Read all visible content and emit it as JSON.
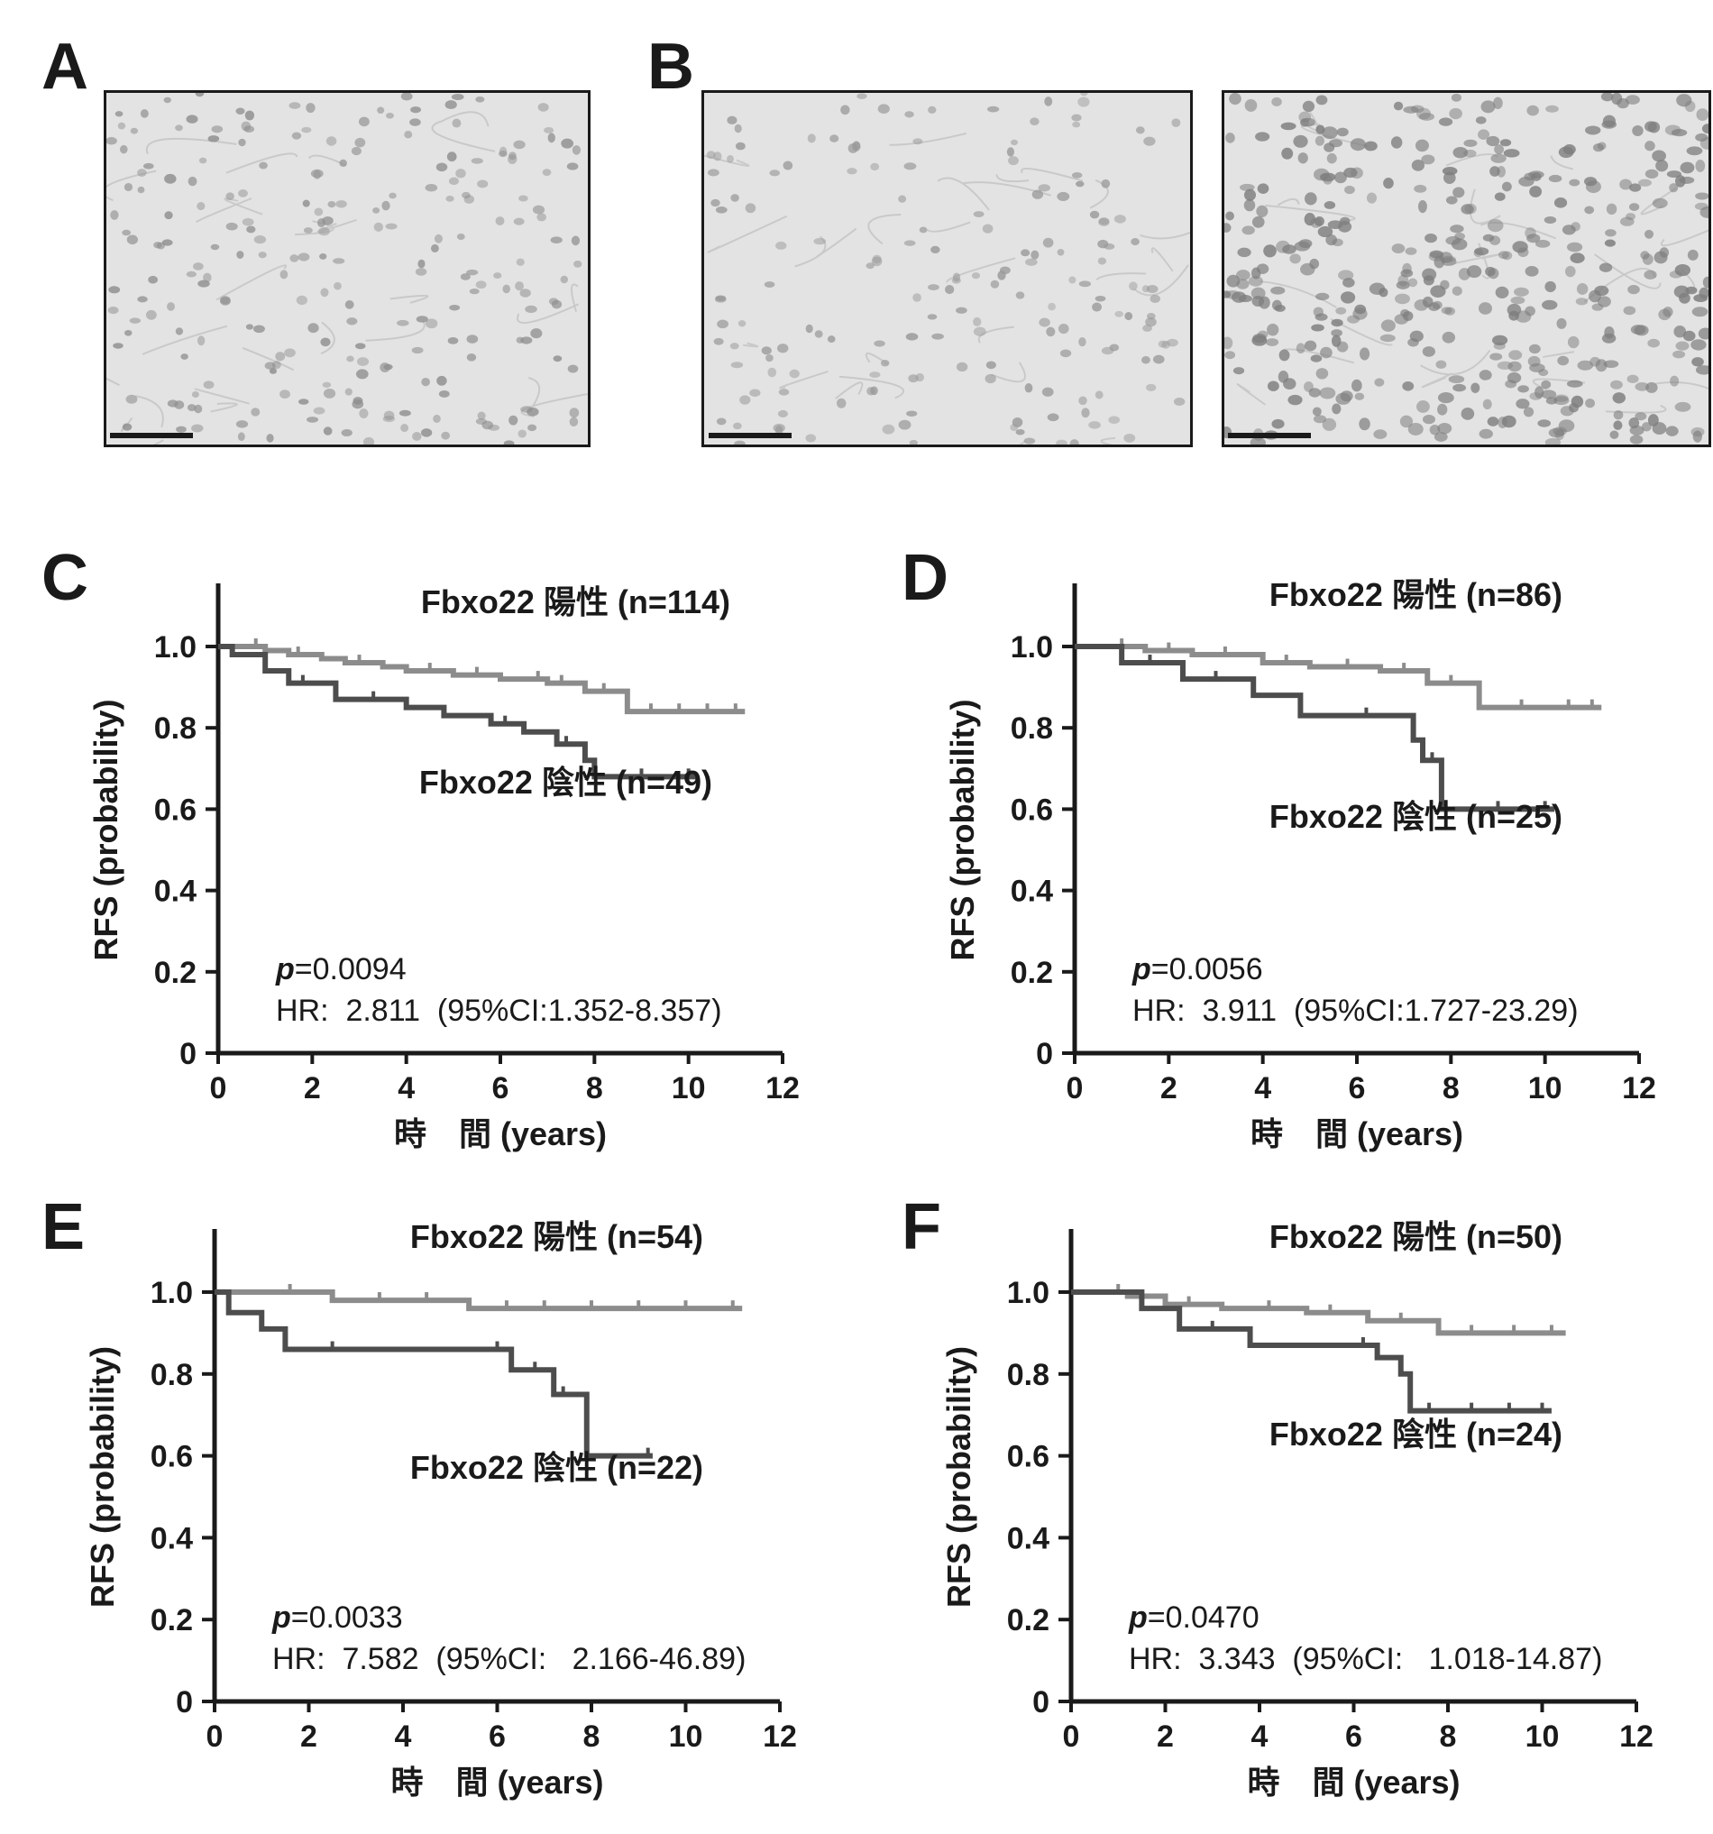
{
  "panel_letters": {
    "A": "A",
    "B": "B",
    "C": "C",
    "D": "D",
    "E": "E",
    "F": "F"
  },
  "micrographs": [
    {
      "panel": "A",
      "content": "normal breast duct tissue, immunostained",
      "scale_bar": true
    },
    {
      "panel": "B",
      "content": "breast tumor tissue, weak nuclear staining",
      "scale_bar": true
    },
    {
      "panel": "B",
      "content": "breast tumor tissue, strong nuclear staining",
      "scale_bar": true
    }
  ],
  "colors": {
    "positive_line": "#8c8c8c",
    "negative_line": "#4d4d4d",
    "axis": "#1a1a1a",
    "tissue_bg": "#e3e3e3",
    "nuclei": "#8a8a8a"
  },
  "chart_data": [
    {
      "panel": "C",
      "type": "line",
      "step": true,
      "ylabel": "RFS (probability)",
      "xlabel": "時　間 (years)",
      "xlim": [
        0,
        12
      ],
      "ylim": [
        0,
        1.0
      ],
      "xticks": [
        "0",
        "2",
        "4",
        "6",
        "8",
        "10",
        "12"
      ],
      "yticks": [
        "0",
        "0.2",
        "0.4",
        "0.6",
        "0.8",
        "1.0"
      ],
      "pvalue_label": "p",
      "pvalue_text": "=0.0094",
      "hr_text": "HR:  2.811  (95%CI:1.352-8.357)",
      "series": [
        {
          "name": "Fbxo22 陽性 (n=114)",
          "role": "positive",
          "x": [
            0,
            0.5,
            1.0,
            1.5,
            2.2,
            2.7,
            3.5,
            4.0,
            5.0,
            6.0,
            6.5,
            7.0,
            7.8,
            8.7,
            11.2
          ],
          "y": [
            1.0,
            1.0,
            0.99,
            0.98,
            0.97,
            0.96,
            0.95,
            0.94,
            0.93,
            0.92,
            0.92,
            0.91,
            0.89,
            0.84,
            0.84
          ],
          "censors": [
            [
              0.8,
              1.0
            ],
            [
              1.7,
              0.98
            ],
            [
              3.0,
              0.96
            ],
            [
              4.5,
              0.94
            ],
            [
              5.5,
              0.93
            ],
            [
              6.8,
              0.92
            ],
            [
              7.3,
              0.91
            ],
            [
              8.2,
              0.89
            ],
            [
              9.2,
              0.84
            ],
            [
              9.8,
              0.84
            ],
            [
              10.4,
              0.84
            ],
            [
              11.0,
              0.84
            ]
          ]
        },
        {
          "name": "Fbxo22 陰性 (n=49)",
          "role": "negative",
          "x": [
            0,
            0.3,
            1.0,
            1.5,
            2.5,
            4.0,
            4.8,
            5.8,
            6.5,
            7.2,
            7.8,
            8.0,
            10.2
          ],
          "y": [
            1.0,
            0.98,
            0.94,
            0.91,
            0.87,
            0.85,
            0.83,
            0.81,
            0.79,
            0.76,
            0.72,
            0.68,
            0.68
          ],
          "censors": [
            [
              1.8,
              0.91
            ],
            [
              3.3,
              0.87
            ],
            [
              6.1,
              0.81
            ],
            [
              7.4,
              0.76
            ],
            [
              9.0,
              0.68
            ],
            [
              10.0,
              0.68
            ]
          ]
        }
      ]
    },
    {
      "panel": "D",
      "type": "line",
      "step": true,
      "ylabel": "RFS (probability)",
      "xlabel": "時　間 (years)",
      "xlim": [
        0,
        12
      ],
      "ylim": [
        0,
        1.0
      ],
      "xticks": [
        "0",
        "2",
        "4",
        "6",
        "8",
        "10",
        "12"
      ],
      "yticks": [
        "0",
        "0.2",
        "0.4",
        "0.6",
        "0.8",
        "1.0"
      ],
      "pvalue_label": "p",
      "pvalue_text": "=0.0056",
      "hr_text": "HR:  3.911  (95%CI:1.727-23.29)",
      "series": [
        {
          "name": "Fbxo22 陽性 (n=86)",
          "role": "positive",
          "x": [
            0,
            1.5,
            2.5,
            4.0,
            5.0,
            6.5,
            7.5,
            8.6,
            11.2
          ],
          "y": [
            1.0,
            0.99,
            0.98,
            0.96,
            0.95,
            0.94,
            0.91,
            0.85,
            0.85
          ],
          "censors": [
            [
              1.0,
              1.0
            ],
            [
              2.0,
              0.99
            ],
            [
              3.2,
              0.98
            ],
            [
              4.5,
              0.96
            ],
            [
              5.8,
              0.95
            ],
            [
              7.0,
              0.94
            ],
            [
              8.0,
              0.91
            ],
            [
              9.5,
              0.85
            ],
            [
              10.5,
              0.85
            ],
            [
              11.0,
              0.85
            ]
          ]
        },
        {
          "name": "Fbxo22 陰性 (n=25)",
          "role": "negative",
          "x": [
            0,
            1.0,
            2.3,
            3.8,
            4.8,
            7.2,
            7.4,
            7.8,
            10.2
          ],
          "y": [
            1.0,
            0.96,
            0.92,
            0.88,
            0.83,
            0.77,
            0.72,
            0.6,
            0.6
          ],
          "censors": [
            [
              1.6,
              0.96
            ],
            [
              3.0,
              0.92
            ],
            [
              6.2,
              0.83
            ],
            [
              7.6,
              0.72
            ],
            [
              9.0,
              0.6
            ],
            [
              10.0,
              0.6
            ]
          ]
        }
      ]
    },
    {
      "panel": "E",
      "type": "line",
      "step": true,
      "ylabel": "RFS (probability)",
      "xlabel": "時　間 (years)",
      "xlim": [
        0,
        12
      ],
      "ylim": [
        0,
        1.0
      ],
      "xticks": [
        "0",
        "2",
        "4",
        "6",
        "8",
        "10",
        "12"
      ],
      "yticks": [
        "0",
        "0.2",
        "0.4",
        "0.6",
        "0.8",
        "1.0"
      ],
      "pvalue_label": "p",
      "pvalue_text": "=0.0033",
      "hr_text": "HR:  7.582  (95%CI:   2.166-46.89)",
      "series": [
        {
          "name": "Fbxo22 陽性 (n=54)",
          "role": "positive",
          "x": [
            0,
            2.5,
            5.4,
            11.2
          ],
          "y": [
            1.0,
            0.98,
            0.96,
            0.96
          ],
          "censors": [
            [
              1.6,
              1.0
            ],
            [
              3.5,
              0.98
            ],
            [
              4.5,
              0.98
            ],
            [
              6.2,
              0.96
            ],
            [
              7.0,
              0.96
            ],
            [
              8.0,
              0.96
            ],
            [
              9.0,
              0.96
            ],
            [
              10.0,
              0.96
            ],
            [
              11.0,
              0.96
            ]
          ]
        },
        {
          "name": "Fbxo22 陰性 (n=22)",
          "role": "negative",
          "x": [
            0,
            0.3,
            1.0,
            1.5,
            6.3,
            7.2,
            7.9,
            9.3
          ],
          "y": [
            1.0,
            0.95,
            0.91,
            0.86,
            0.81,
            0.75,
            0.6,
            0.6
          ],
          "censors": [
            [
              2.5,
              0.86
            ],
            [
              6.0,
              0.86
            ],
            [
              6.8,
              0.81
            ],
            [
              7.4,
              0.75
            ],
            [
              9.2,
              0.6
            ]
          ]
        }
      ]
    },
    {
      "panel": "F",
      "type": "line",
      "step": true,
      "ylabel": "RFS (probability)",
      "xlabel": "時　間 (years)",
      "xlim": [
        0,
        12
      ],
      "ylim": [
        0,
        1.0
      ],
      "xticks": [
        "0",
        "2",
        "4",
        "6",
        "8",
        "10",
        "12"
      ],
      "yticks": [
        "0",
        "0.2",
        "0.4",
        "0.6",
        "0.8",
        "1.0"
      ],
      "pvalue_label": "p",
      "pvalue_text": "=0.0470",
      "hr_text": "HR:  3.343  (95%CI:   1.018-14.87)",
      "series": [
        {
          "name": "Fbxo22 陽性 (n=50)",
          "role": "positive",
          "x": [
            0,
            1.2,
            2.0,
            3.2,
            5.0,
            6.3,
            7.8,
            10.5
          ],
          "y": [
            1.0,
            0.99,
            0.97,
            0.96,
            0.95,
            0.93,
            0.9,
            0.9
          ],
          "censors": [
            [
              1.0,
              1.0
            ],
            [
              2.5,
              0.97
            ],
            [
              4.2,
              0.96
            ],
            [
              5.5,
              0.95
            ],
            [
              7.0,
              0.93
            ],
            [
              8.5,
              0.9
            ],
            [
              9.4,
              0.9
            ],
            [
              10.2,
              0.9
            ]
          ]
        },
        {
          "name": "Fbxo22 陰性 (n=24)",
          "role": "negative",
          "x": [
            0,
            1.5,
            2.3,
            3.8,
            6.5,
            7.0,
            7.2,
            10.2
          ],
          "y": [
            1.0,
            0.96,
            0.91,
            0.87,
            0.84,
            0.8,
            0.71,
            0.71
          ],
          "censors": [
            [
              3.0,
              0.91
            ],
            [
              6.2,
              0.87
            ],
            [
              7.6,
              0.71
            ],
            [
              8.5,
              0.71
            ],
            [
              9.3,
              0.71
            ],
            [
              10.0,
              0.71
            ]
          ]
        }
      ]
    }
  ]
}
